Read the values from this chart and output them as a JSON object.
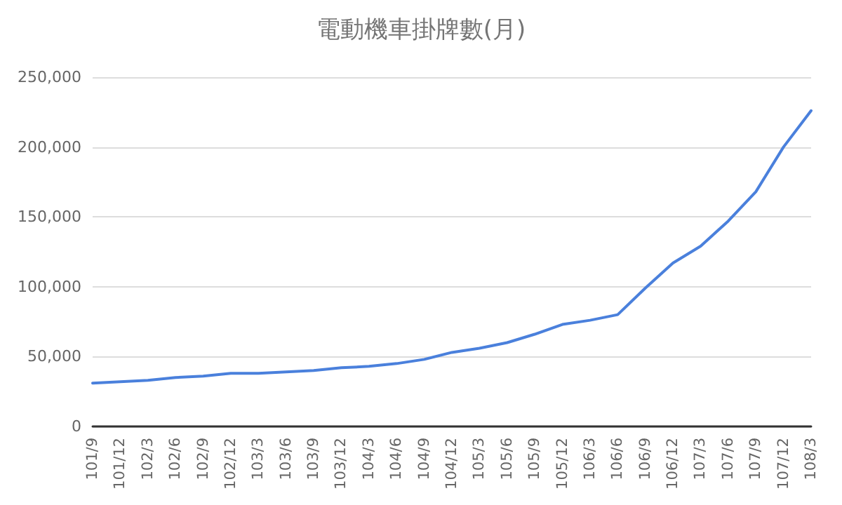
{
  "chart_data": {
    "type": "line",
    "title": "電動機車掛牌數(月)",
    "categories": [
      "101/9",
      "101/12",
      "102/3",
      "102/6",
      "102/9",
      "102/12",
      "103/3",
      "103/6",
      "103/9",
      "103/12",
      "104/3",
      "104/6",
      "104/9",
      "104/12",
      "105/3",
      "105/6",
      "105/9",
      "105/12",
      "106/3",
      "106/6",
      "106/9",
      "106/12",
      "107/3",
      "107/6",
      "107/9",
      "107/12",
      "108/3"
    ],
    "series": [
      {
        "color": "#4a80dc",
        "values": [
          31000,
          32000,
          33000,
          35000,
          36000,
          38000,
          38000,
          39000,
          40000,
          42000,
          43000,
          45000,
          48000,
          53000,
          56000,
          60000,
          66000,
          73000,
          76000,
          80000,
          99000,
          117000,
          129000,
          147000,
          168000,
          200000,
          226000
        ]
      }
    ],
    "ylim": [
      0,
      250000
    ],
    "yticks": [
      0,
      {
        "value": 50000,
        "label": "50,000"
      },
      {
        "value": 100000,
        "label": "100,000"
      },
      {
        "value": 150000,
        "label": "150,000"
      },
      {
        "value": 200000,
        "label": "200,000"
      },
      {
        "value": 250000,
        "label": "250,000"
      }
    ],
    "grid": "y",
    "marker": "none",
    "line_style": "solid"
  }
}
